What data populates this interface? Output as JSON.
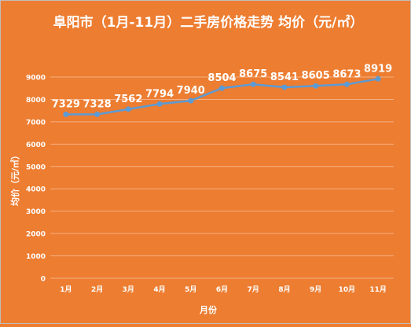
{
  "chart_data": {
    "type": "line",
    "title": "阜阳市（1月-11月）二手房价格走势 均价（元/㎡）",
    "xlabel": "月份",
    "ylabel": "均价（元/㎡）",
    "categories": [
      "1月",
      "2月",
      "3月",
      "4月",
      "5月",
      "6月",
      "7月",
      "8月",
      "9月",
      "10月",
      "11月"
    ],
    "series": [
      {
        "values": [
          7329,
          7328,
          7562,
          7794,
          7940,
          8504,
          8675,
          8541,
          8605,
          8673,
          8919
        ],
        "data_labels": [
          "7329",
          "7328",
          "7562",
          "7794",
          "7940",
          "8504",
          "8675",
          "8541",
          "8605",
          "8673",
          "8919"
        ]
      }
    ],
    "ylim": [
      0,
      9000
    ],
    "yticks": [
      "0",
      "1000",
      "2000",
      "3000",
      "4000",
      "5000",
      "6000",
      "7000",
      "8000",
      "9000"
    ],
    "grid": true,
    "legend": "none",
    "colors": {
      "background": "#ED7D31",
      "line": "#5B9BD5",
      "text": "#FFFFFF",
      "grid": "#F4B183",
      "border": "#BFBFBF"
    }
  }
}
